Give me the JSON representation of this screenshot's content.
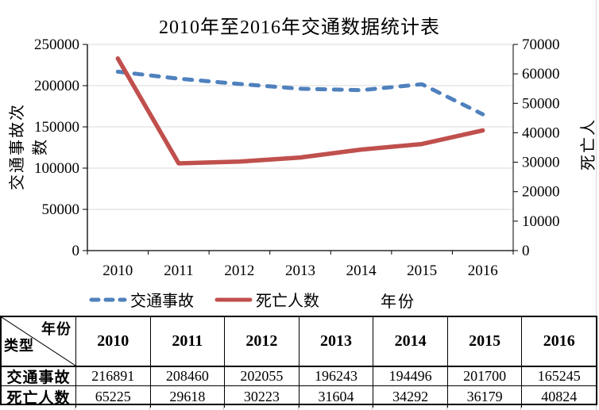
{
  "chart": {
    "title": "2010年至2016年交通数据统计表",
    "x_axis_title": "年份",
    "left_axis_title": "交通事故次数",
    "right_axis_title": "死亡人数",
    "legend": [
      {
        "label": "交通事故",
        "color": "#4F81BD",
        "style": "dashed"
      },
      {
        "label": "死亡人数",
        "color": "#C0504D",
        "style": "solid"
      }
    ],
    "colors": {
      "grid": "#D9D9D9",
      "axis": "#000000",
      "accident_blue": "#4F81BD",
      "death_red": "#C0504D"
    }
  },
  "chart_data": {
    "type": "line",
    "title": "2010年至2016年交通数据统计表",
    "categories": [
      "2010",
      "2011",
      "2012",
      "2013",
      "2014",
      "2015",
      "2016"
    ],
    "series": [
      {
        "id": "traffic-accidents",
        "name": "交通事故",
        "axis": "left",
        "color": "#4F81BD",
        "dash": true,
        "values": [
          216891,
          208460,
          202055,
          196243,
          194496,
          201700,
          165245
        ]
      },
      {
        "id": "deaths",
        "name": "死亡人数",
        "axis": "right",
        "color": "#C0504D",
        "dash": false,
        "values": [
          65225,
          29618,
          30223,
          31604,
          34292,
          36179,
          40824
        ]
      }
    ],
    "xlabel": "年份",
    "ylabel_left": "交通事故次数",
    "ylabel_right": "死亡人数",
    "ylim_left": [
      0,
      250000
    ],
    "ystep_left": 50000,
    "ylim_right": [
      0,
      70000
    ],
    "ystep_right": 10000,
    "grid": true,
    "legend_position": "bottom"
  },
  "table": {
    "corner": {
      "top_right": "年份",
      "bottom_left": "类型"
    },
    "columns": [
      "2010",
      "2011",
      "2012",
      "2013",
      "2014",
      "2015",
      "2016"
    ],
    "rows": [
      {
        "label": "交通事故",
        "values": [
          216891,
          208460,
          202055,
          196243,
          194496,
          201700,
          165245
        ]
      },
      {
        "label": "死亡人数",
        "values": [
          65225,
          29618,
          30223,
          31604,
          34292,
          36179,
          40824
        ]
      }
    ]
  }
}
